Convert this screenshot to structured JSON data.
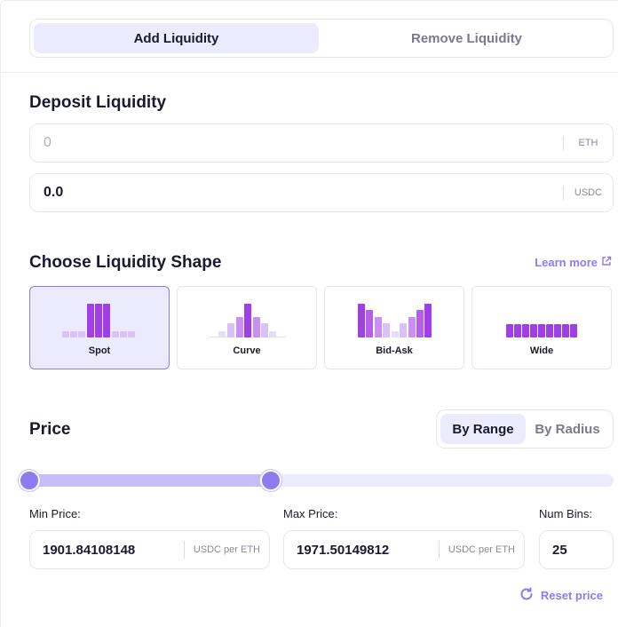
{
  "tabs": {
    "add_label": "Add Liquidity",
    "remove_label": "Remove Liquidity"
  },
  "deposit": {
    "title": "Deposit Liquidity",
    "token_a": {
      "value": "0",
      "unit": "ETH"
    },
    "token_b": {
      "value": "0.0",
      "unit": "USDC"
    }
  },
  "shape": {
    "title": "Choose Liquidity Shape",
    "learn_more": "Learn more",
    "options": [
      {
        "label": "Spot",
        "selected": true
      },
      {
        "label": "Curve",
        "selected": false
      },
      {
        "label": "Bid-Ask",
        "selected": false
      },
      {
        "label": "Wide",
        "selected": false
      }
    ]
  },
  "price": {
    "title": "Price",
    "toggle": {
      "range_label": "By Range",
      "radius_label": "By Radius",
      "selected": "By Range"
    },
    "min_label": "Min Price:",
    "max_label": "Max Price:",
    "bins_label": "Num Bins:",
    "min_value": "1901.84108148",
    "max_value": "1971.50149812",
    "unit": "USDC per ETH",
    "num_bins": "25",
    "reset_label": "Reset price"
  },
  "colors": {
    "accent": "#8b7cf0",
    "accent_light": "#ecebfd",
    "bar_dark": "#a23ee6",
    "bar_light": "#d9c2f8"
  },
  "icons": {
    "learn_more": "external-link-icon",
    "reset": "refresh-icon"
  }
}
